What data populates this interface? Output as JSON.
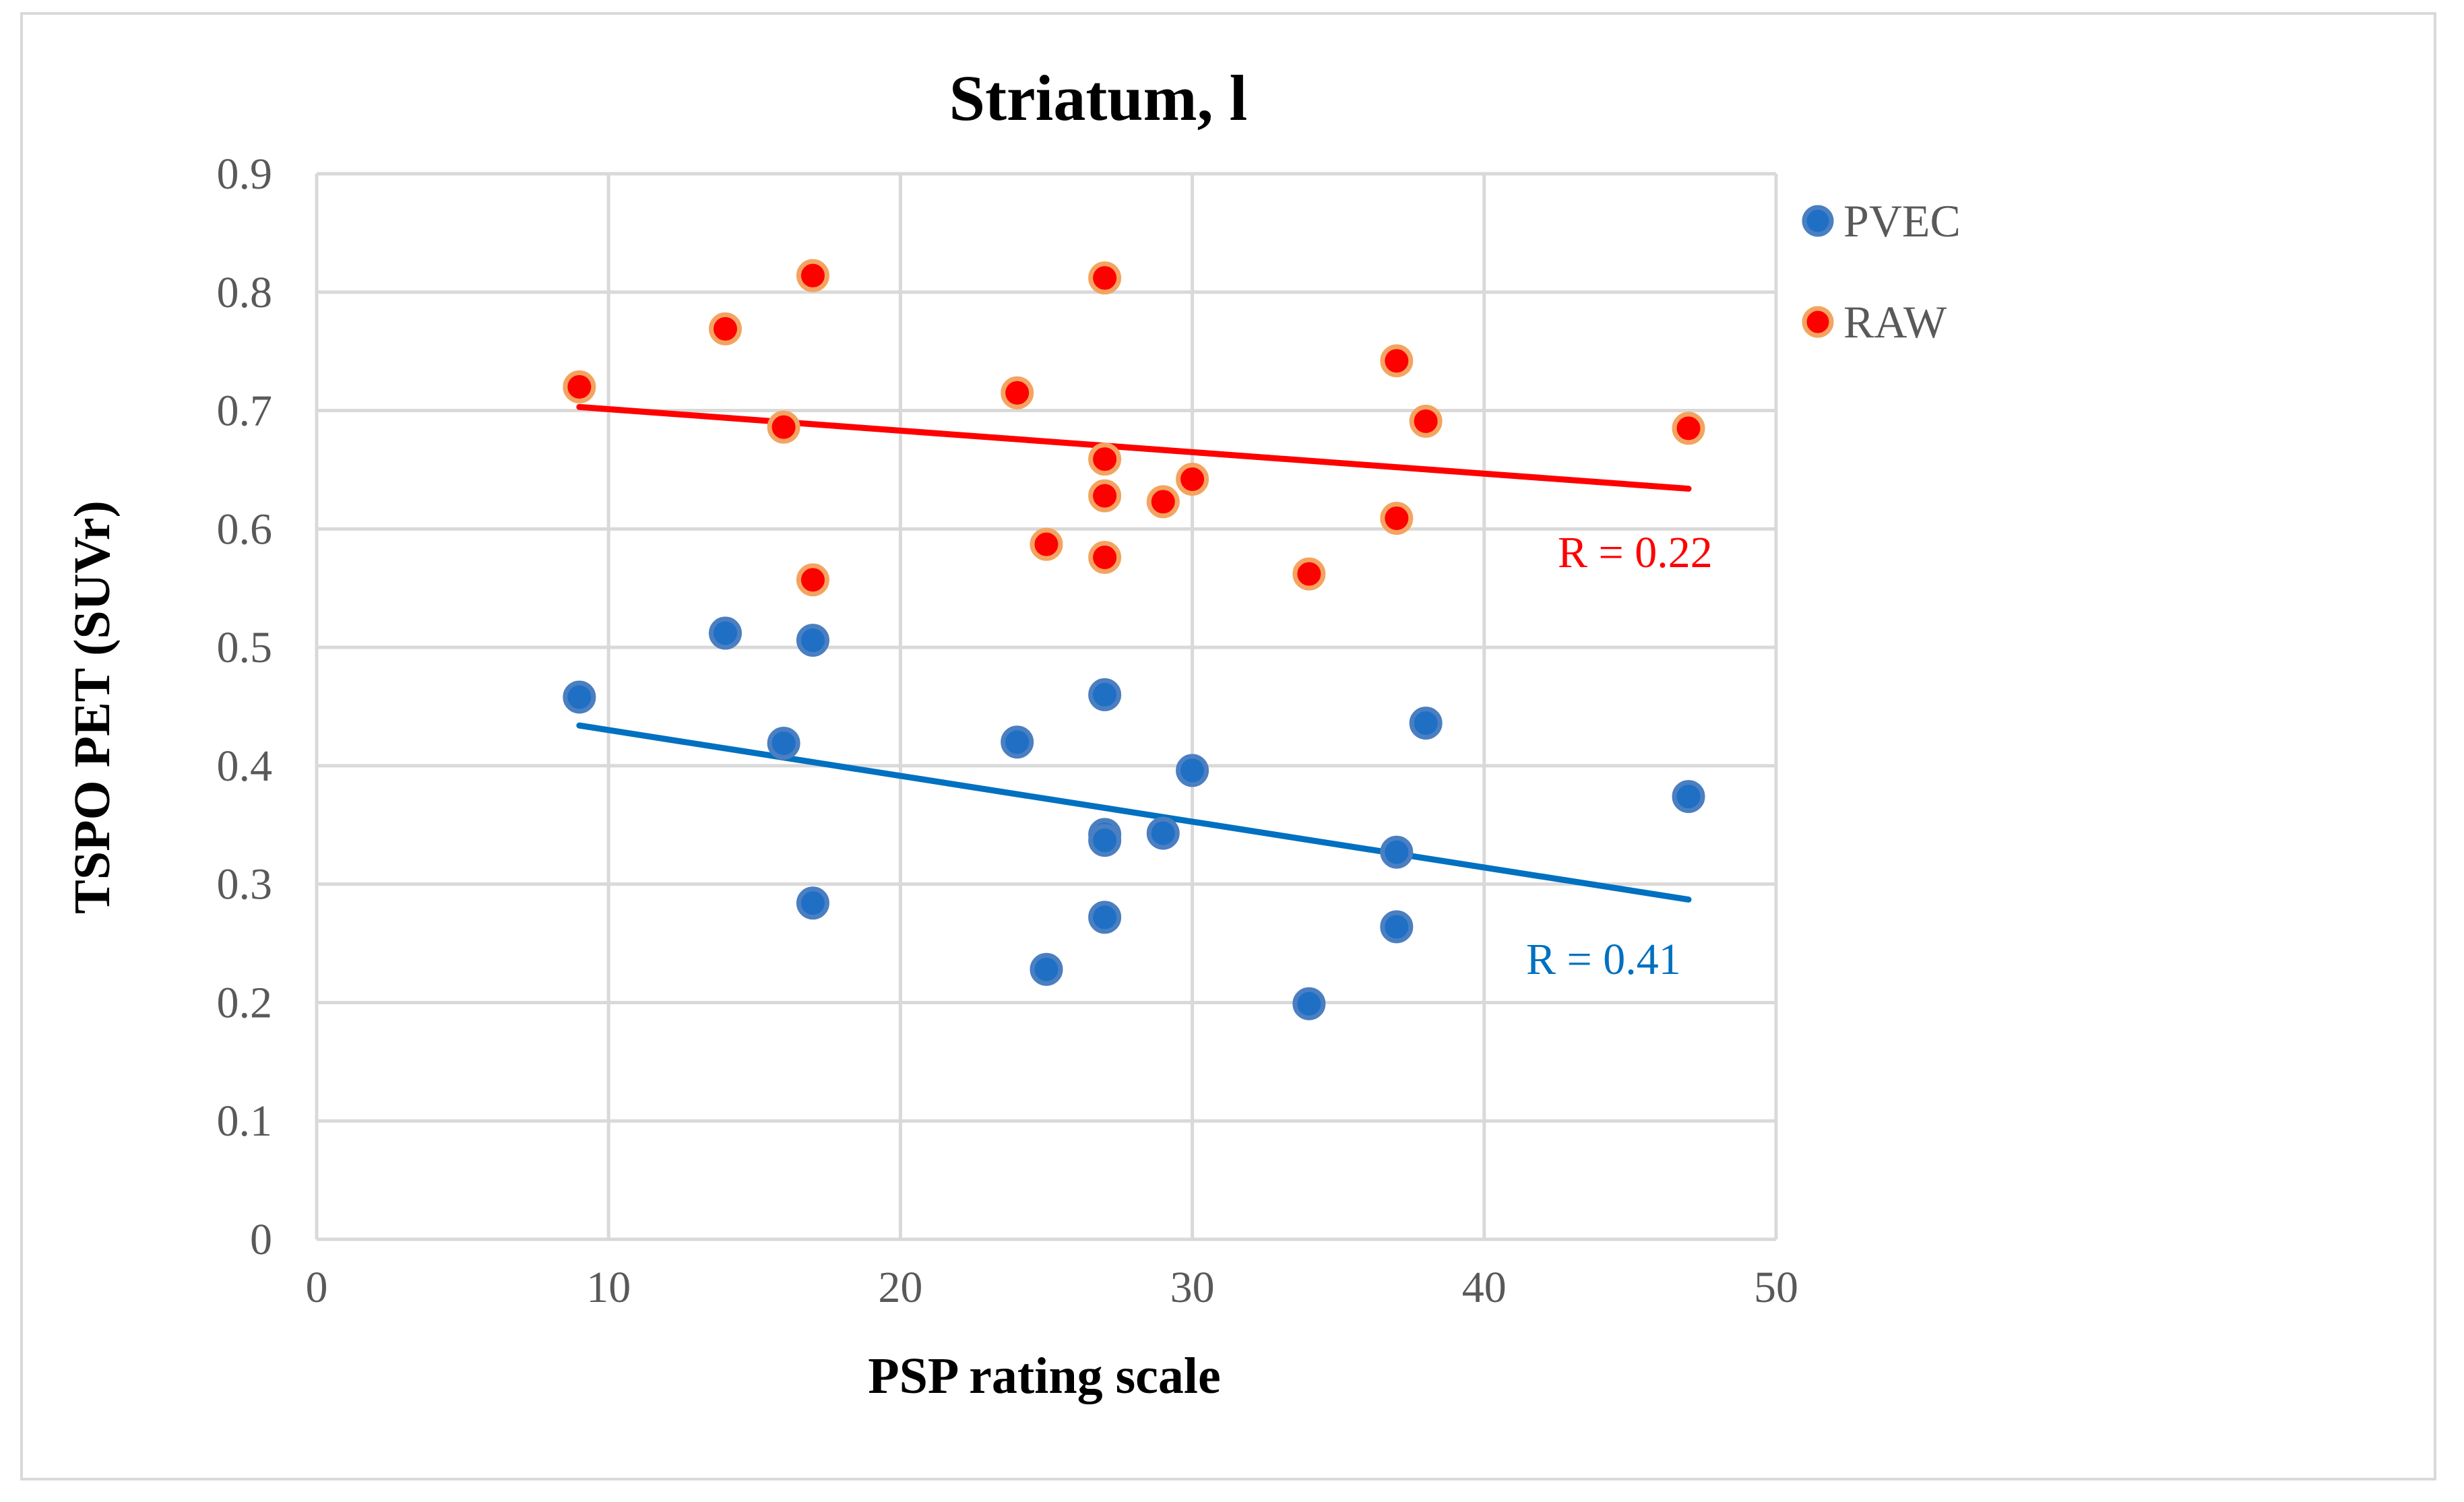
{
  "chart_data": {
    "type": "scatter",
    "title": "Striatum, l",
    "xlabel": "PSP rating scale",
    "ylabel": "TSPO PET (SUVr)",
    "xlim": [
      0,
      50
    ],
    "ylim": [
      0,
      0.9
    ],
    "xticks": [
      "0",
      "10",
      "20",
      "30",
      "40",
      "50"
    ],
    "yticks": [
      "0",
      "0.1",
      "0.2",
      "0.3",
      "0.4",
      "0.5",
      "0.6",
      "0.7",
      "0.8",
      "0.9"
    ],
    "grid": true,
    "legend_position": "right",
    "series": [
      {
        "name": "PVEC",
        "color": "#1f6fc5",
        "edge_color": "#4a7fc1",
        "points": [
          {
            "x": 9,
            "y": 0.458
          },
          {
            "x": 14,
            "y": 0.512
          },
          {
            "x": 16,
            "y": 0.419
          },
          {
            "x": 17,
            "y": 0.506
          },
          {
            "x": 17,
            "y": 0.284
          },
          {
            "x": 24,
            "y": 0.42
          },
          {
            "x": 25,
            "y": 0.228
          },
          {
            "x": 27,
            "y": 0.46
          },
          {
            "x": 27,
            "y": 0.342
          },
          {
            "x": 27,
            "y": 0.337
          },
          {
            "x": 27,
            "y": 0.272
          },
          {
            "x": 29,
            "y": 0.343
          },
          {
            "x": 30,
            "y": 0.396
          },
          {
            "x": 34,
            "y": 0.199
          },
          {
            "x": 37,
            "y": 0.327
          },
          {
            "x": 37,
            "y": 0.264
          },
          {
            "x": 38,
            "y": 0.436
          },
          {
            "x": 47,
            "y": 0.374
          }
        ],
        "trendline": {
          "x": [
            9,
            47
          ],
          "y": [
            0.434,
            0.287
          ],
          "color": "#0070c0"
        },
        "r_label": "R = 0.41",
        "r_color": "#0070c0"
      },
      {
        "name": "RAW",
        "color": "#ff0000",
        "edge_color": "#f4a460",
        "points": [
          {
            "x": 9,
            "y": 0.72
          },
          {
            "x": 14,
            "y": 0.769
          },
          {
            "x": 16,
            "y": 0.686
          },
          {
            "x": 17,
            "y": 0.814
          },
          {
            "x": 17,
            "y": 0.557
          },
          {
            "x": 24,
            "y": 0.715
          },
          {
            "x": 25,
            "y": 0.587
          },
          {
            "x": 27,
            "y": 0.812
          },
          {
            "x": 27,
            "y": 0.659
          },
          {
            "x": 27,
            "y": 0.628
          },
          {
            "x": 27,
            "y": 0.576
          },
          {
            "x": 29,
            "y": 0.623
          },
          {
            "x": 30,
            "y": 0.642
          },
          {
            "x": 34,
            "y": 0.562
          },
          {
            "x": 37,
            "y": 0.742
          },
          {
            "x": 37,
            "y": 0.609
          },
          {
            "x": 38,
            "y": 0.691
          },
          {
            "x": 47,
            "y": 0.685
          }
        ],
        "trendline": {
          "x": [
            9,
            47
          ],
          "y": [
            0.703,
            0.634
          ],
          "color": "#ff0000"
        },
        "r_label": "R = 0.22",
        "r_color": "#ff0000"
      }
    ]
  }
}
